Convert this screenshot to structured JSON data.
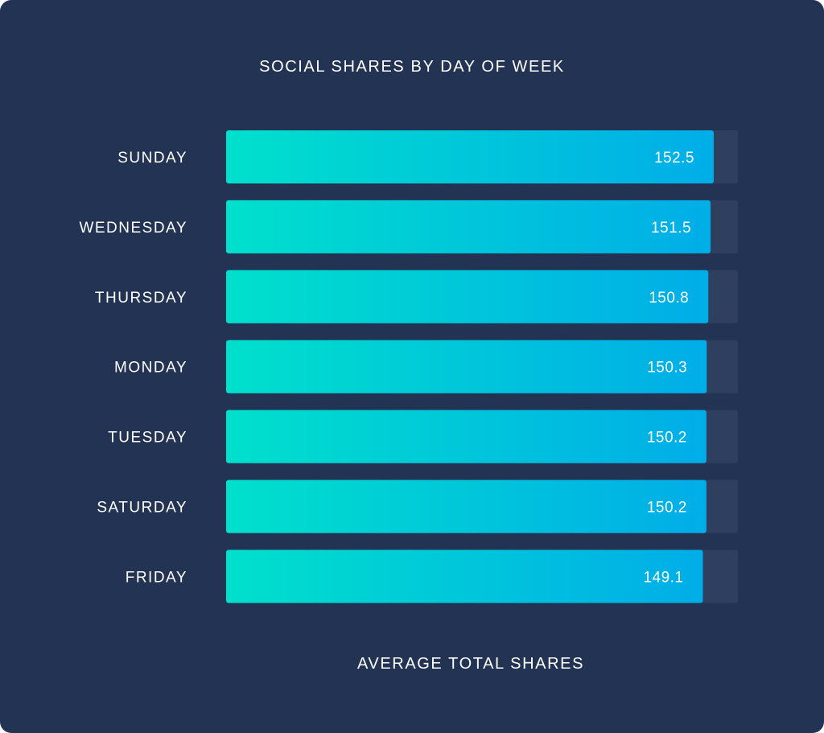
{
  "chart_data": {
    "type": "bar",
    "orientation": "horizontal",
    "title": "SOCIAL SHARES BY DAY OF WEEK",
    "xlabel": "AVERAGE TOTAL SHARES",
    "ylabel": "",
    "categories": [
      "SUNDAY",
      "WEDNESDAY",
      "THURSDAY",
      "MONDAY",
      "TUESDAY",
      "SATURDAY",
      "FRIDAY"
    ],
    "values": [
      152.5,
      151.5,
      150.8,
      150.3,
      150.2,
      150.2,
      149.1
    ],
    "value_labels": [
      "152.5",
      "151.5",
      "150.8",
      "150.3",
      "150.2",
      "150.2",
      "149.1"
    ],
    "xlim": [
      0,
      160
    ],
    "grid": false,
    "legend": "none"
  },
  "colors": {
    "background": "#233354",
    "track": "#2f3f5f",
    "bar_start": "#00e0cc",
    "bar_end": "#00ade8",
    "text": "#ffffff"
  }
}
